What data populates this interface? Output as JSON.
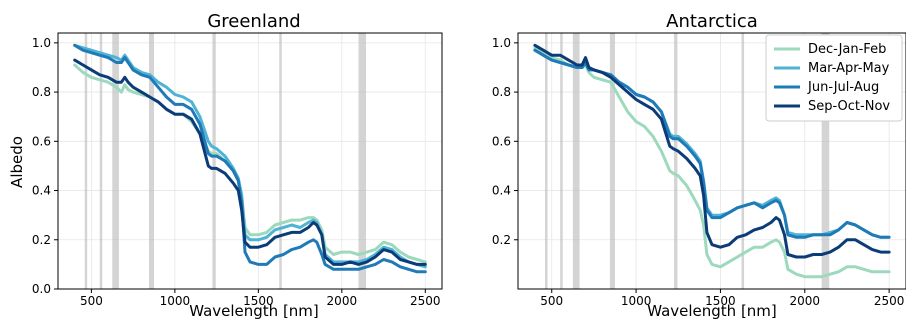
{
  "chart_data": [
    {
      "type": "line",
      "title": "Greenland",
      "xlabel": "Wavelength [nm]",
      "ylabel": "Albedo",
      "xlim": [
        300,
        2600
      ],
      "ylim": [
        0,
        1.04
      ],
      "xticks": [
        500,
        1000,
        1500,
        2000,
        2500
      ],
      "yticks": [
        0.0,
        0.2,
        0.4,
        0.6,
        0.8,
        1.0
      ],
      "ytick_labels": [
        "0.0",
        "0.2",
        "0.4",
        "0.6",
        "0.8",
        "1.0"
      ],
      "grid": true,
      "legend": null,
      "shaded_bands": [
        [
          460,
          475
        ],
        [
          550,
          565
        ],
        [
          625,
          665
        ],
        [
          845,
          875
        ],
        [
          1225,
          1245
        ],
        [
          1625,
          1640
        ],
        [
          2100,
          2145
        ]
      ],
      "x": [
        400,
        450,
        500,
        550,
        600,
        650,
        680,
        700,
        720,
        750,
        800,
        850,
        900,
        950,
        1000,
        1050,
        1100,
        1150,
        1200,
        1220,
        1250,
        1300,
        1350,
        1380,
        1400,
        1420,
        1450,
        1500,
        1550,
        1600,
        1650,
        1700,
        1750,
        1800,
        1830,
        1850,
        1880,
        1900,
        1950,
        2000,
        2050,
        2100,
        2150,
        2200,
        2250,
        2300,
        2350,
        2400,
        2450,
        2500
      ],
      "series": [
        {
          "name": "Dec-Jan-Feb",
          "color": "#9dd9bd",
          "values": [
            0.91,
            0.88,
            0.86,
            0.85,
            0.84,
            0.82,
            0.8,
            0.83,
            0.81,
            0.8,
            0.79,
            0.78,
            0.76,
            0.73,
            0.71,
            0.71,
            0.68,
            0.63,
            0.56,
            0.55,
            0.55,
            0.52,
            0.48,
            0.44,
            0.38,
            0.25,
            0.22,
            0.22,
            0.23,
            0.26,
            0.27,
            0.28,
            0.28,
            0.29,
            0.29,
            0.28,
            0.24,
            0.17,
            0.14,
            0.15,
            0.15,
            0.14,
            0.15,
            0.16,
            0.19,
            0.18,
            0.15,
            0.13,
            0.12,
            0.11
          ]
        },
        {
          "name": "Mar-Apr-May",
          "color": "#4fb3d4",
          "values": [
            0.99,
            0.98,
            0.97,
            0.96,
            0.95,
            0.94,
            0.93,
            0.95,
            0.93,
            0.9,
            0.88,
            0.87,
            0.84,
            0.82,
            0.79,
            0.78,
            0.76,
            0.7,
            0.6,
            0.58,
            0.57,
            0.54,
            0.49,
            0.45,
            0.38,
            0.22,
            0.2,
            0.2,
            0.21,
            0.24,
            0.25,
            0.26,
            0.25,
            0.27,
            0.28,
            0.27,
            0.22,
            0.14,
            0.11,
            0.11,
            0.11,
            0.11,
            0.12,
            0.14,
            0.17,
            0.16,
            0.13,
            0.11,
            0.1,
            0.09
          ]
        },
        {
          "name": "Jun-Jul-Aug",
          "color": "#1f7ab8",
          "values": [
            0.99,
            0.97,
            0.96,
            0.95,
            0.94,
            0.92,
            0.92,
            0.94,
            0.92,
            0.89,
            0.87,
            0.86,
            0.82,
            0.78,
            0.75,
            0.75,
            0.73,
            0.67,
            0.55,
            0.54,
            0.54,
            0.52,
            0.48,
            0.44,
            0.35,
            0.15,
            0.11,
            0.1,
            0.1,
            0.13,
            0.14,
            0.16,
            0.17,
            0.19,
            0.2,
            0.19,
            0.14,
            0.1,
            0.08,
            0.08,
            0.08,
            0.08,
            0.09,
            0.1,
            0.12,
            0.11,
            0.09,
            0.08,
            0.07,
            0.07
          ]
        },
        {
          "name": "Sep-Oct-Nov",
          "color": "#0b3c78",
          "values": [
            0.93,
            0.91,
            0.89,
            0.87,
            0.86,
            0.84,
            0.84,
            0.86,
            0.84,
            0.82,
            0.8,
            0.78,
            0.76,
            0.73,
            0.71,
            0.71,
            0.69,
            0.63,
            0.5,
            0.49,
            0.49,
            0.47,
            0.43,
            0.4,
            0.32,
            0.19,
            0.17,
            0.17,
            0.18,
            0.21,
            0.22,
            0.23,
            0.23,
            0.25,
            0.27,
            0.26,
            0.22,
            0.13,
            0.1,
            0.1,
            0.11,
            0.1,
            0.11,
            0.13,
            0.16,
            0.15,
            0.12,
            0.11,
            0.1,
            0.1
          ]
        }
      ]
    },
    {
      "type": "line",
      "title": "Antarctica",
      "xlabel": "Wavelength [nm]",
      "ylabel": "",
      "xlim": [
        300,
        2600
      ],
      "ylim": [
        0,
        1.04
      ],
      "xticks": [
        500,
        1000,
        1500,
        2000,
        2500
      ],
      "yticks": [
        0.2,
        0.4,
        0.6,
        0.8,
        1.0
      ],
      "ytick_labels": [
        "0.2",
        "0.4",
        "0.6",
        "0.8",
        "1.0"
      ],
      "grid": true,
      "legend": "top-right",
      "shaded_bands": [
        [
          460,
          475
        ],
        [
          550,
          565
        ],
        [
          625,
          665
        ],
        [
          845,
          875
        ],
        [
          1225,
          1245
        ],
        [
          1625,
          1640
        ],
        [
          2100,
          2145
        ]
      ],
      "x": [
        400,
        450,
        500,
        550,
        600,
        650,
        680,
        700,
        720,
        750,
        800,
        850,
        900,
        950,
        1000,
        1050,
        1100,
        1150,
        1200,
        1220,
        1250,
        1300,
        1350,
        1380,
        1400,
        1420,
        1450,
        1500,
        1550,
        1600,
        1650,
        1700,
        1750,
        1800,
        1830,
        1850,
        1880,
        1900,
        1950,
        2000,
        2050,
        2100,
        2150,
        2200,
        2250,
        2300,
        2350,
        2400,
        2450,
        2500
      ],
      "series": [
        {
          "name": "Dec-Jan-Feb",
          "color": "#9dd9bd",
          "values": [
            0.98,
            0.96,
            0.94,
            0.93,
            0.91,
            0.9,
            0.9,
            0.91,
            0.88,
            0.86,
            0.85,
            0.84,
            0.78,
            0.72,
            0.68,
            0.66,
            0.62,
            0.56,
            0.48,
            0.47,
            0.46,
            0.42,
            0.36,
            0.32,
            0.26,
            0.14,
            0.1,
            0.09,
            0.11,
            0.13,
            0.15,
            0.17,
            0.17,
            0.19,
            0.2,
            0.19,
            0.15,
            0.08,
            0.06,
            0.05,
            0.05,
            0.05,
            0.06,
            0.07,
            0.09,
            0.09,
            0.08,
            0.07,
            0.07,
            0.07
          ]
        },
        {
          "name": "Mar-Apr-May",
          "color": "#4fb3d4",
          "values": [
            0.97,
            0.95,
            0.93,
            0.92,
            0.91,
            0.9,
            0.9,
            0.92,
            0.89,
            0.89,
            0.88,
            0.87,
            0.84,
            0.82,
            0.79,
            0.78,
            0.76,
            0.72,
            0.63,
            0.62,
            0.62,
            0.59,
            0.55,
            0.52,
            0.44,
            0.33,
            0.3,
            0.3,
            0.31,
            0.33,
            0.34,
            0.35,
            0.34,
            0.36,
            0.37,
            0.36,
            0.3,
            0.23,
            0.22,
            0.22,
            0.22,
            0.22,
            0.23,
            0.24,
            0.27,
            0.26,
            0.24,
            0.22,
            0.21,
            0.21
          ]
        },
        {
          "name": "Jun-Jul-Aug",
          "color": "#1f7ab8",
          "values": [
            0.97,
            0.95,
            0.93,
            0.92,
            0.91,
            0.9,
            0.9,
            0.92,
            0.89,
            0.89,
            0.88,
            0.87,
            0.84,
            0.82,
            0.79,
            0.78,
            0.76,
            0.72,
            0.62,
            0.61,
            0.61,
            0.58,
            0.54,
            0.51,
            0.43,
            0.32,
            0.29,
            0.29,
            0.31,
            0.33,
            0.34,
            0.35,
            0.33,
            0.35,
            0.36,
            0.35,
            0.3,
            0.22,
            0.21,
            0.21,
            0.22,
            0.22,
            0.22,
            0.24,
            0.27,
            0.26,
            0.24,
            0.22,
            0.21,
            0.21
          ]
        },
        {
          "name": "Sep-Oct-Nov",
          "color": "#0b3c78",
          "values": [
            0.99,
            0.97,
            0.95,
            0.95,
            0.93,
            0.91,
            0.91,
            0.94,
            0.9,
            0.89,
            0.88,
            0.86,
            0.83,
            0.8,
            0.77,
            0.75,
            0.73,
            0.69,
            0.58,
            0.57,
            0.56,
            0.53,
            0.49,
            0.46,
            0.38,
            0.23,
            0.18,
            0.17,
            0.18,
            0.21,
            0.22,
            0.24,
            0.25,
            0.27,
            0.29,
            0.28,
            0.22,
            0.14,
            0.13,
            0.13,
            0.14,
            0.14,
            0.15,
            0.17,
            0.2,
            0.2,
            0.18,
            0.16,
            0.15,
            0.15
          ]
        }
      ]
    }
  ]
}
